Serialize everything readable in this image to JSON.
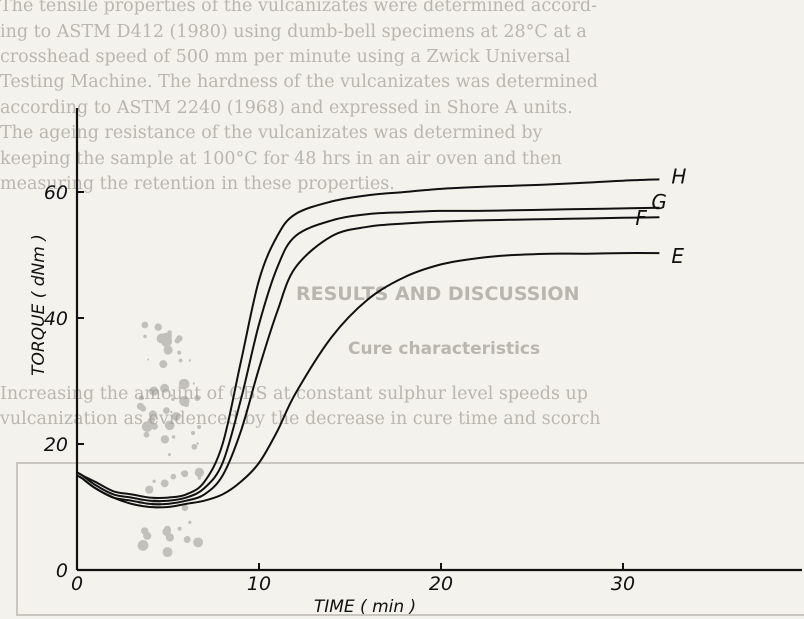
{
  "background_text": {
    "lines": [
      "The tensile properties of the vulcanizates were determined accord-",
      "ing to ASTM D412 (1980) using dumb-bell specimens at 28°C at a",
      "crosshead speed of 500 mm per minute using a Zwick Universal",
      "Testing Machine. The hardness of the vulcanizates was determined",
      "according to ASTM 2240 (1968) and expressed in Shore A units.",
      "The ageing resistance of the vulcanizates was determined by",
      "keeping the sample at 100°C for 48 hrs in an air oven and then",
      "measuring the retention in these properties."
    ],
    "heading": "RESULTS AND DISCUSSION",
    "subheading": "Cure characteristics",
    "para_lines": [
      "Increasing the amount of CBS at constant sulphur level speeds up",
      "vulcanization as evidenced by the decrease in cure time and scorch"
    ]
  },
  "chart_data": {
    "type": "line",
    "title": "",
    "xlabel": "TIME ( min )",
    "ylabel": "TORQUE ( dNm )",
    "xlim": [
      0,
      38
    ],
    "ylim": [
      0,
      68
    ],
    "xticks": [
      0,
      10,
      20,
      30
    ],
    "yticks": [
      0,
      20,
      40,
      60
    ],
    "series": [
      {
        "name": "H",
        "x": [
          0,
          0.3,
          1,
          2,
          3,
          4,
          5,
          6,
          7,
          8,
          9,
          10,
          11,
          12,
          14,
          16,
          18,
          20,
          22,
          24,
          26,
          28,
          30,
          32
        ],
        "y": [
          15.5,
          15,
          14,
          12.5,
          12,
          11.5,
          11.5,
          12,
          14,
          20,
          33,
          46,
          53,
          56.5,
          58.5,
          59.5,
          60,
          60.5,
          60.8,
          61,
          61.2,
          61.5,
          61.8,
          62
        ]
      },
      {
        "name": "G",
        "x": [
          0,
          0.3,
          1,
          2,
          3,
          4,
          5,
          6,
          7,
          8,
          9,
          10,
          11,
          12,
          14,
          16,
          18,
          20,
          22,
          24,
          26,
          28,
          30,
          32
        ],
        "y": [
          15.5,
          15,
          13.5,
          12,
          11.5,
          11,
          11,
          11.5,
          13,
          17,
          27,
          39,
          48,
          53,
          55.5,
          56.5,
          56.8,
          57,
          57,
          57.1,
          57.2,
          57.3,
          57.4,
          57.5
        ]
      },
      {
        "name": "F",
        "x": [
          0,
          0.3,
          1,
          2,
          3,
          4,
          5,
          6,
          7,
          8,
          9,
          10,
          11,
          12,
          14,
          16,
          18,
          20,
          22,
          24,
          26,
          28,
          30,
          32
        ],
        "y": [
          15,
          14.5,
          13,
          11.5,
          11,
          10.5,
          10.5,
          11,
          12,
          15,
          22,
          32,
          41,
          48,
          53,
          54.5,
          55,
          55.3,
          55.5,
          55.6,
          55.7,
          55.8,
          55.9,
          56
        ]
      },
      {
        "name": "E",
        "x": [
          0,
          0.3,
          1,
          2,
          3,
          4,
          5,
          6,
          7,
          8,
          9,
          10,
          11,
          12,
          14,
          16,
          18,
          20,
          22,
          24,
          26,
          28,
          30,
          32
        ],
        "y": [
          15,
          14.5,
          13,
          11.5,
          10.5,
          10,
          10,
          10.5,
          11,
          12,
          14,
          17,
          22,
          28,
          37,
          43,
          46.5,
          48.5,
          49.5,
          50,
          50.2,
          50.2,
          50.3,
          50.3
        ]
      }
    ]
  }
}
